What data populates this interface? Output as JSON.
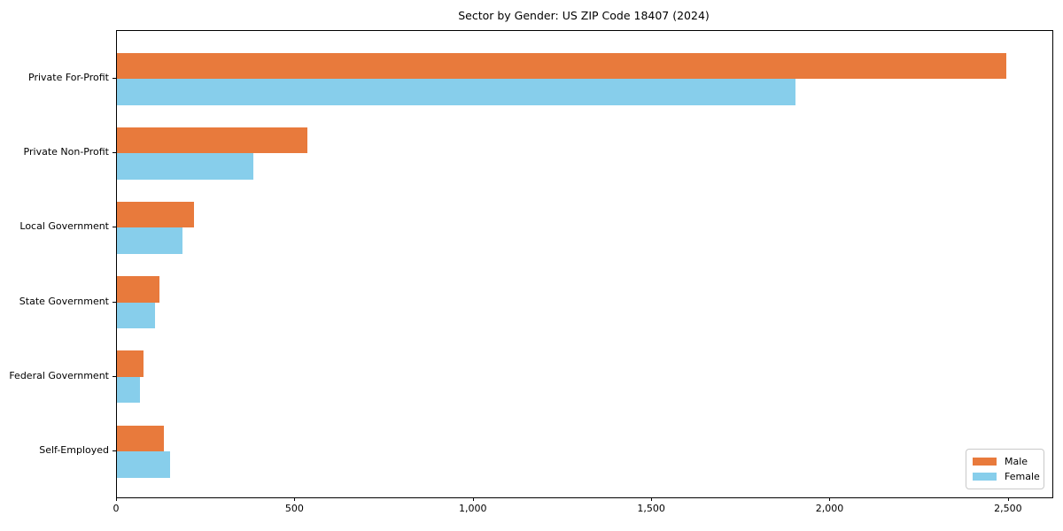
{
  "chart_data": {
    "type": "bar",
    "orientation": "horizontal",
    "title": "Sector by Gender: US ZIP Code 18407 (2024)",
    "categories": [
      "Private For-Profit",
      "Private Non-Profit",
      "Local Government",
      "State Government",
      "Federal Government",
      "Self-Employed"
    ],
    "series": [
      {
        "name": "Male",
        "color": "#e87a3c",
        "values": [
          2494,
          534,
          216,
          118,
          75,
          132
        ]
      },
      {
        "name": "Female",
        "color": "#87ceeb",
        "values": [
          1902,
          382,
          184,
          108,
          64,
          150
        ]
      }
    ],
    "xlabel": "",
    "ylabel": "",
    "xlim": [
      0,
      2622
    ],
    "xticks": [
      0,
      500,
      1000,
      1500,
      2000,
      2500
    ],
    "xtick_labels": [
      "0",
      "500",
      "1,000",
      "1,500",
      "2,000",
      "2,500"
    ],
    "grid": false,
    "legend_position": "lower right",
    "background_color": "#ffffff",
    "spine_color": "#000000"
  }
}
